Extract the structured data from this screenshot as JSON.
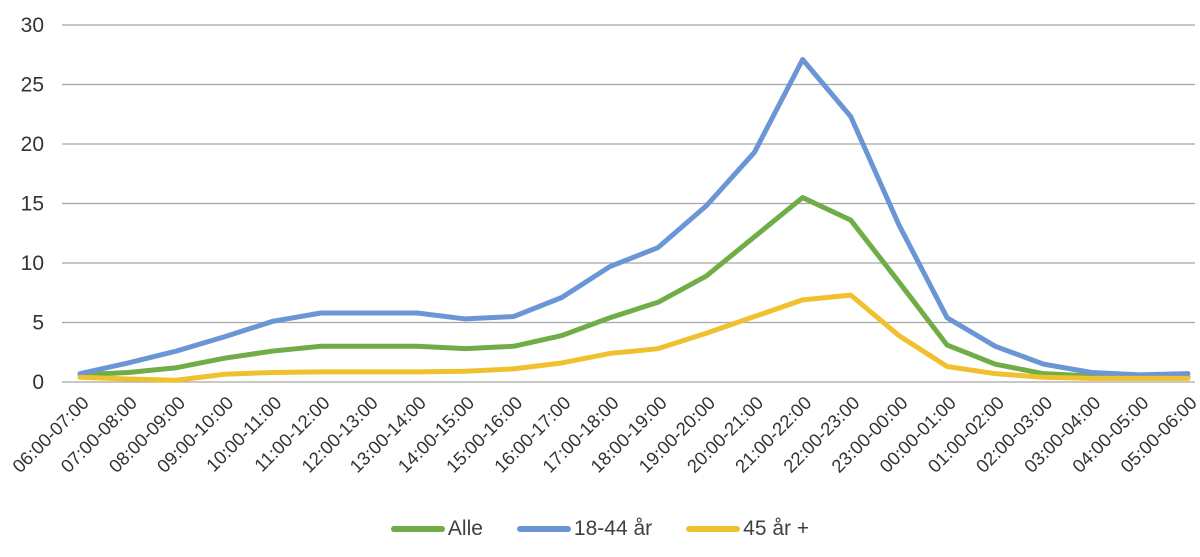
{
  "chart_data": {
    "type": "line",
    "title": "",
    "xlabel": "",
    "ylabel": "",
    "categories": [
      "06:00-07:00",
      "07:00-08:00",
      "08:00-09:00",
      "09:00-10:00",
      "10:00-11:00",
      "11:00-12:00",
      "12:00-13:00",
      "13:00-14:00",
      "14:00-15:00",
      "15:00-16:00",
      "16:00-17:00",
      "17:00-18:00",
      "18:00-19:00",
      "19:00-20:00",
      "20:00-21:00",
      "21:00-22:00",
      "22:00-23:00",
      "23:00-00:00",
      "00:00-01:00",
      "01:00-02:00",
      "02:00-03:00",
      "03:00-04:00",
      "04:00-05:00",
      "05:00-06:00"
    ],
    "series": [
      {
        "name": "Alle",
        "color": "#70AD47",
        "values": [
          0.6,
          0.8,
          1.2,
          2.0,
          2.6,
          3.0,
          3.0,
          3.0,
          2.8,
          3.0,
          3.9,
          5.4,
          6.7,
          8.9,
          12.2,
          15.5,
          13.6,
          8.4,
          3.1,
          1.5,
          0.7,
          0.5,
          0.4,
          0.4
        ]
      },
      {
        "name": "18-44 år",
        "color": "#6B96D5",
        "values": [
          0.7,
          1.6,
          2.6,
          3.8,
          5.1,
          5.8,
          5.8,
          5.8,
          5.3,
          5.5,
          7.1,
          9.7,
          11.3,
          14.8,
          19.3,
          27.1,
          22.3,
          13.2,
          5.4,
          3.0,
          1.5,
          0.8,
          0.6,
          0.7
        ]
      },
      {
        "name": "45 år +",
        "color": "#F0C12F",
        "values": [
          0.4,
          0.25,
          0.15,
          0.65,
          0.8,
          0.85,
          0.85,
          0.85,
          0.9,
          1.1,
          1.6,
          2.4,
          2.8,
          4.1,
          5.5,
          6.9,
          7.3,
          3.9,
          1.3,
          0.7,
          0.4,
          0.3,
          0.3,
          0.3
        ]
      }
    ],
    "ylim": [
      0,
      30
    ],
    "yticks": [
      0,
      5,
      10,
      15,
      20,
      25,
      30
    ],
    "grid": "horizontal",
    "gridline_color": "#A6A6A6",
    "tick_label_color": "#333333",
    "background": "#FFFFFF",
    "legend_position": "bottom-center",
    "x_tick_rotation_deg": -45
  }
}
